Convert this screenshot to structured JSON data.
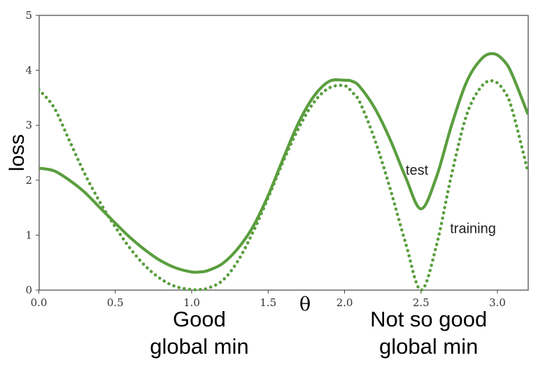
{
  "chart_data": {
    "type": "line",
    "xlabel": "θ",
    "ylabel": "loss",
    "xlim": [
      0.0,
      3.2
    ],
    "ylim": [
      0,
      5
    ],
    "x_ticks": [
      "0.0",
      "0.5",
      "1.0",
      "1.5",
      "2.0",
      "2.5",
      "3.0"
    ],
    "y_ticks": [
      "0",
      "1",
      "2",
      "3",
      "4",
      "5"
    ],
    "grid": false,
    "series": [
      {
        "name": "test",
        "style": "solid",
        "color": "#5a9e3f",
        "x": [
          0.0,
          0.1,
          0.2,
          0.3,
          0.4,
          0.5,
          0.6,
          0.7,
          0.8,
          0.9,
          1.0,
          1.05,
          1.1,
          1.2,
          1.3,
          1.4,
          1.5,
          1.6,
          1.7,
          1.8,
          1.9,
          2.0,
          2.05,
          2.1,
          2.2,
          2.3,
          2.4,
          2.5,
          2.6,
          2.7,
          2.8,
          2.9,
          2.98,
          3.05,
          3.1,
          3.2
        ],
        "y": [
          2.22,
          2.17,
          2.0,
          1.78,
          1.5,
          1.22,
          0.95,
          0.72,
          0.53,
          0.4,
          0.33,
          0.33,
          0.35,
          0.48,
          0.75,
          1.15,
          1.72,
          2.4,
          3.05,
          3.53,
          3.8,
          3.82,
          3.8,
          3.7,
          3.3,
          2.73,
          2.05,
          1.48,
          2.05,
          3.0,
          3.8,
          4.22,
          4.3,
          4.15,
          3.9,
          3.2
        ]
      },
      {
        "name": "training",
        "style": "dotted",
        "color": "#5a9e3f",
        "x": [
          0.0,
          0.1,
          0.2,
          0.3,
          0.4,
          0.5,
          0.6,
          0.7,
          0.8,
          0.9,
          1.0,
          1.05,
          1.1,
          1.2,
          1.3,
          1.4,
          1.5,
          1.6,
          1.7,
          1.8,
          1.9,
          2.0,
          2.05,
          2.1,
          2.2,
          2.3,
          2.4,
          2.5,
          2.6,
          2.7,
          2.8,
          2.9,
          2.98,
          3.05,
          3.1,
          3.2
        ],
        "y": [
          3.65,
          3.32,
          2.72,
          2.12,
          1.6,
          1.15,
          0.75,
          0.43,
          0.2,
          0.06,
          0.01,
          0.01,
          0.03,
          0.17,
          0.52,
          1.05,
          1.68,
          2.35,
          2.95,
          3.42,
          3.68,
          3.72,
          3.6,
          3.42,
          2.72,
          1.83,
          0.85,
          0.0,
          0.8,
          2.1,
          3.2,
          3.72,
          3.8,
          3.6,
          3.25,
          2.15
        ]
      }
    ],
    "annotations": [
      {
        "text": "test",
        "x": 2.4,
        "y": 2.1
      },
      {
        "text": "training",
        "x": 2.69,
        "y": 1.04
      }
    ],
    "notes": [
      {
        "lines": [
          "Good",
          "global min"
        ],
        "x_center": 1.05
      },
      {
        "lines": [
          "Not so good",
          "global min"
        ],
        "x_center": 2.55
      }
    ]
  }
}
